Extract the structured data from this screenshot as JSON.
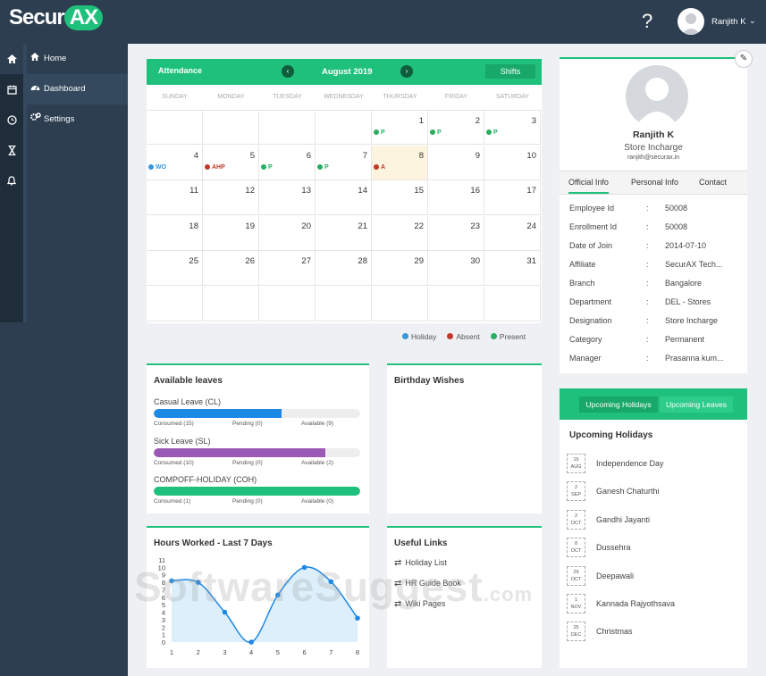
{
  "app": {
    "logo_a": "Secur",
    "logo_b": "AX",
    "help": "?",
    "user_name": "Ranjith K",
    "chevron": "⌄"
  },
  "rail": {
    "icons": [
      "home-icon",
      "calendar-icon",
      "clock-icon",
      "hourglass-icon",
      "bell-icon"
    ]
  },
  "sidebar": {
    "items": [
      {
        "label": "Home",
        "icon": "home-icon"
      },
      {
        "label": "Dashboard",
        "icon": "dashboard-icon"
      },
      {
        "label": "Settings",
        "icon": "settings-icon"
      }
    ]
  },
  "attendance": {
    "title": "Attendance",
    "month": "August 2019",
    "prev": "‹",
    "next": "›",
    "shifts": "Shifts",
    "weekdays": [
      "SUNDAY",
      "MONDAY",
      "TUESDAY",
      "WEDNESDAY",
      "THURSDAY",
      "FRIDAY",
      "SATURDAY"
    ],
    "weeks": [
      [
        {
          "d": ""
        },
        {
          "d": ""
        },
        {
          "d": ""
        },
        {
          "d": ""
        },
        {
          "d": "1",
          "m": "P",
          "c": "#27ae60"
        },
        {
          "d": "2",
          "m": "P",
          "c": "#27ae60"
        },
        {
          "d": "3",
          "m": "P",
          "c": "#27ae60"
        }
      ],
      [
        {
          "d": "4",
          "m": "WO",
          "c": "#3498db"
        },
        {
          "d": "5",
          "m": "AHP",
          "c": "#c0392b"
        },
        {
          "d": "6",
          "m": "P",
          "c": "#27ae60"
        },
        {
          "d": "7",
          "m": "P",
          "c": "#27ae60"
        },
        {
          "d": "8",
          "m": "A",
          "c": "#c0392b",
          "today": true
        },
        {
          "d": "9"
        },
        {
          "d": "10"
        }
      ],
      [
        {
          "d": "11"
        },
        {
          "d": "12"
        },
        {
          "d": "13"
        },
        {
          "d": "14"
        },
        {
          "d": "15"
        },
        {
          "d": "16"
        },
        {
          "d": "17"
        }
      ],
      [
        {
          "d": "18"
        },
        {
          "d": "19"
        },
        {
          "d": "20"
        },
        {
          "d": "21"
        },
        {
          "d": "22"
        },
        {
          "d": "23"
        },
        {
          "d": "24"
        }
      ],
      [
        {
          "d": "25"
        },
        {
          "d": "26"
        },
        {
          "d": "27"
        },
        {
          "d": "28"
        },
        {
          "d": "29"
        },
        {
          "d": "30"
        },
        {
          "d": "31"
        }
      ],
      [
        {
          "d": ""
        },
        {
          "d": ""
        },
        {
          "d": ""
        },
        {
          "d": ""
        },
        {
          "d": ""
        },
        {
          "d": ""
        },
        {
          "d": ""
        }
      ]
    ],
    "legend": [
      {
        "label": "Holiday",
        "color": "#3498db"
      },
      {
        "label": "Absent",
        "color": "#c0392b"
      },
      {
        "label": "Present",
        "color": "#27ae60"
      }
    ]
  },
  "leaves": {
    "title": "Available leaves",
    "items": [
      {
        "name": "Casual Leave (CL)",
        "consumed": "Consumed (15)",
        "pending": "Pending (0)",
        "available": "Available (9)",
        "fill": 0.62,
        "color": "#1e88e5"
      },
      {
        "name": "Sick Leave (SL)",
        "consumed": "Consumed (10)",
        "pending": "Pending (0)",
        "available": "Available (2)",
        "fill": 0.83,
        "color": "#9b59b6"
      },
      {
        "name": "COMPOFF-HOLIDAY (COH)",
        "consumed": "Consumed (1)",
        "pending": "Pending (0)",
        "available": "Available (0)",
        "fill": 1.0,
        "color": "#1fc07b"
      }
    ]
  },
  "birthday": {
    "title": "Birthday Wishes"
  },
  "hours": {
    "title": "Hours Worked - Last 7 Days"
  },
  "chart_data": {
    "type": "area",
    "title": "Hours Worked - Last 7 Days",
    "x": [
      1,
      2,
      3,
      4,
      5,
      6,
      7,
      8
    ],
    "values": [
      8.2,
      8.0,
      4.0,
      0.0,
      6.3,
      10.0,
      8.1,
      3.2
    ],
    "yticks": [
      0,
      1,
      2,
      3,
      4,
      5,
      6,
      7,
      8,
      9,
      10,
      11
    ],
    "ylim": [
      0,
      11
    ],
    "color": "#1e88e5"
  },
  "links": {
    "title": "Useful Links",
    "items": [
      "Holiday List",
      "HR Guide Book",
      "Wiki Pages"
    ]
  },
  "profile": {
    "name": "Ranjith K",
    "role": "Store Incharge",
    "email": "ranjith@securax.in",
    "edit": "✎",
    "tabs": [
      "Official Info",
      "Personal Info",
      "Contact"
    ],
    "fields": [
      {
        "k": "Employee Id",
        "v": "50008"
      },
      {
        "k": "Enrollment Id",
        "v": "50008"
      },
      {
        "k": "Date of Join",
        "v": "2014-07-10"
      },
      {
        "k": "Affiliate",
        "v": "SecurAX Tech..."
      },
      {
        "k": "Branch",
        "v": "Bangalore"
      },
      {
        "k": "Department",
        "v": "DEL - Stores"
      },
      {
        "k": "Designation",
        "v": "Store Incharge"
      },
      {
        "k": "Category",
        "v": "Permanent"
      },
      {
        "k": "Manager",
        "v": "Prasanna kum..."
      }
    ]
  },
  "holidays": {
    "tab_a": "Upcoming Holidays",
    "tab_b": "Upcoming Leaves",
    "title": "Upcoming Holidays",
    "items": [
      {
        "day": "15",
        "mon": "AUG",
        "name": "Independence Day"
      },
      {
        "day": "2",
        "mon": "SEP",
        "name": "Ganesh Chaturthi"
      },
      {
        "day": "2",
        "mon": "OCT",
        "name": "Gandhi Jayanti"
      },
      {
        "day": "8",
        "mon": "OCT",
        "name": "Dussehra"
      },
      {
        "day": "29",
        "mon": "OCT",
        "name": "Deepawali"
      },
      {
        "day": "1",
        "mon": "NOV",
        "name": "Kannada Rajyothsava"
      },
      {
        "day": "25",
        "mon": "DEC",
        "name": "Christmas"
      }
    ]
  },
  "watermark": {
    "a": "SoftwareSuggest",
    "b": ".com"
  }
}
